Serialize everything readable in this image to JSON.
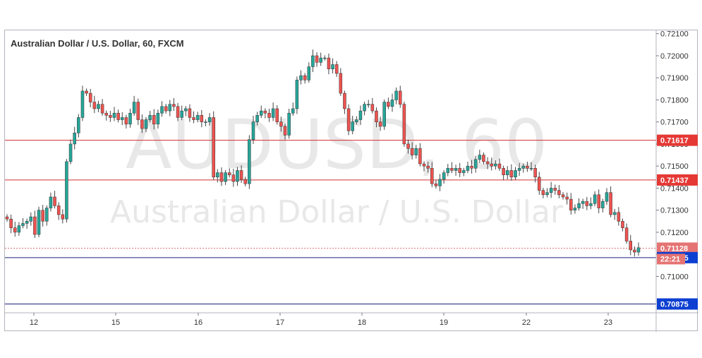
{
  "chart_data": {
    "type": "candlestick",
    "title": "Australian Dollar / U.S. Dollar, 60, FXCM",
    "watermark": {
      "symbol": "AUDUSD, 60",
      "name": "Australian Dollar / U.S. Dollar"
    },
    "x_ticks": [
      "12",
      "15",
      "16",
      "17",
      "18",
      "19",
      "22",
      "23"
    ],
    "y_ticks": [
      "0.72100",
      "0.72000",
      "0.71900",
      "0.71800",
      "0.71700",
      "0.71600",
      "0.71500",
      "0.71400",
      "0.71300",
      "0.71200",
      "0.71100",
      "0.71000"
    ],
    "ylim": [
      0.70835,
      0.72115
    ],
    "lines": [
      {
        "label": "0.71617",
        "value": 0.71617,
        "color": "#d32f2f",
        "style": "solid"
      },
      {
        "label": "0.71437",
        "value": 0.71437,
        "color": "#d32f2f",
        "style": "solid"
      },
      {
        "label": "0.71128",
        "value": 0.71128,
        "color": "#e57373",
        "style": "dotted"
      },
      {
        "label": "0.71085",
        "value": 0.71085,
        "color": "#1a237e",
        "style": "solid"
      },
      {
        "label": "0.70875",
        "value": 0.70875,
        "color": "#1a237e",
        "style": "solid"
      }
    ],
    "countdown": "22:21",
    "colors": {
      "up": "#26a69a",
      "down": "#ef5350",
      "wick": "#444444"
    },
    "candles_close": [
      0.7126,
      0.7122,
      0.712,
      0.7123,
      0.7124,
      0.7125,
      0.7127,
      0.7119,
      0.713,
      0.7125,
      0.7131,
      0.7136,
      0.7132,
      0.7128,
      0.7126,
      0.7152,
      0.716,
      0.7165,
      0.7172,
      0.7184,
      0.7183,
      0.7179,
      0.7176,
      0.7178,
      0.7174,
      0.7173,
      0.7172,
      0.7174,
      0.7171,
      0.7172,
      0.7169,
      0.7174,
      0.7179,
      0.7171,
      0.7167,
      0.7171,
      0.7173,
      0.7169,
      0.7174,
      0.7177,
      0.7175,
      0.7178,
      0.7177,
      0.7172,
      0.7175,
      0.7176,
      0.7172,
      0.7171,
      0.7173,
      0.717,
      0.717,
      0.7172,
      0.7145,
      0.7147,
      0.7143,
      0.7147,
      0.7146,
      0.7143,
      0.7148,
      0.7144,
      0.7142,
      0.7162,
      0.717,
      0.7173,
      0.7175,
      0.7174,
      0.7172,
      0.7176,
      0.717,
      0.7168,
      0.7164,
      0.7174,
      0.7176,
      0.7189,
      0.7191,
      0.7189,
      0.7195,
      0.72,
      0.7197,
      0.7199,
      0.7199,
      0.7194,
      0.7196,
      0.7192,
      0.7183,
      0.7176,
      0.7166,
      0.717,
      0.7171,
      0.7175,
      0.7178,
      0.7178,
      0.7175,
      0.717,
      0.7168,
      0.7179,
      0.7177,
      0.718,
      0.7184,
      0.7178,
      0.716,
      0.7158,
      0.7155,
      0.7158,
      0.7151,
      0.715,
      0.7149,
      0.7142,
      0.7141,
      0.7144,
      0.7147,
      0.7149,
      0.7148,
      0.7149,
      0.7147,
      0.7148,
      0.715,
      0.7149,
      0.7153,
      0.7155,
      0.7152,
      0.7151,
      0.715,
      0.7151,
      0.7149,
      0.7146,
      0.7148,
      0.7145,
      0.7148,
      0.7149,
      0.715,
      0.7149,
      0.7149,
      0.7145,
      0.7139,
      0.7137,
      0.7138,
      0.714,
      0.7139,
      0.7137,
      0.7136,
      0.7135,
      0.713,
      0.7131,
      0.7133,
      0.7134,
      0.7132,
      0.7133,
      0.7137,
      0.7131,
      0.7134,
      0.7138,
      0.7128,
      0.7129,
      0.7125,
      0.7122,
      0.7116,
      0.7112,
      0.7111,
      0.7113
    ]
  }
}
